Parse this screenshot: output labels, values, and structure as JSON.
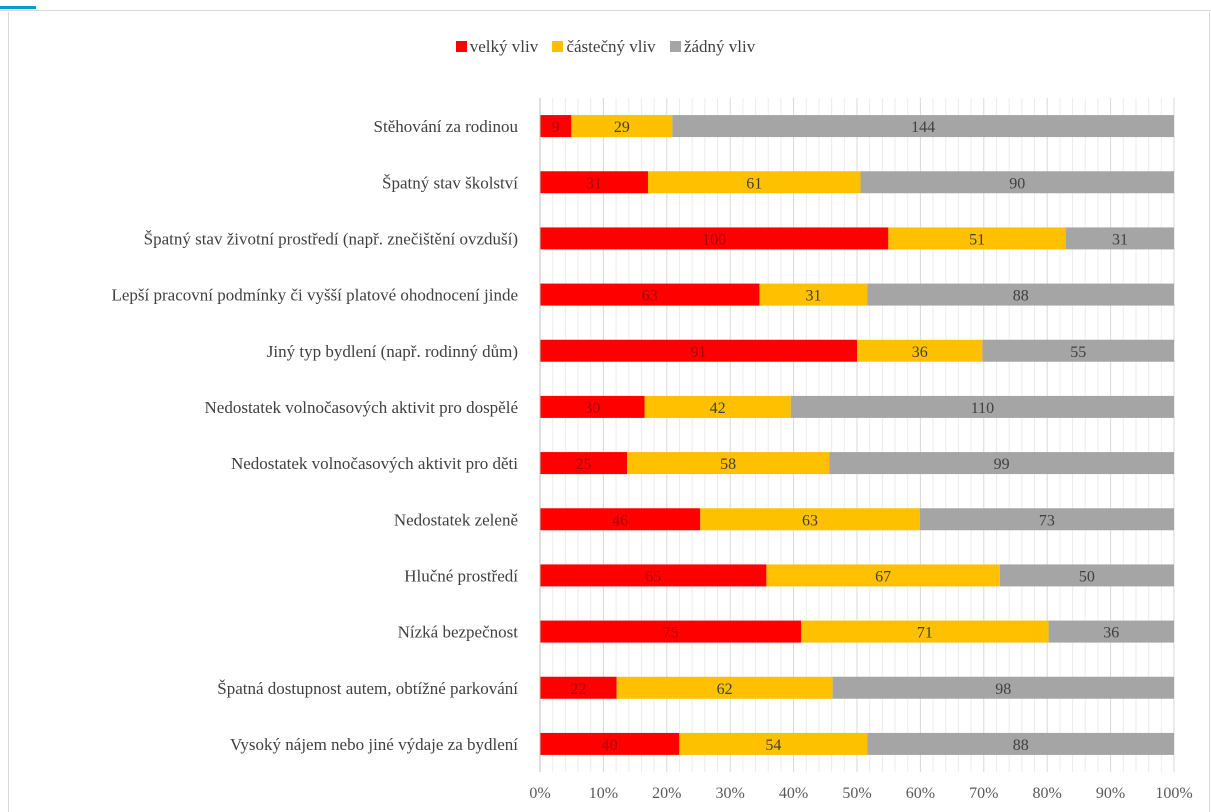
{
  "chart_data": {
    "type": "bar",
    "orientation": "horizontal",
    "stacked": "percent",
    "categories": [
      "Stěhování za rodinou",
      "Špatný stav školství",
      "Špatný stav životní prostředí (např. znečištění ovzduší)",
      "Lepší pracovní podmínky či vyšší platové ohodnocení jinde",
      "Jiný typ bydlení (např. rodinný dům)",
      "Nedostatek volnočasových aktivit pro dospělé",
      "Nedostatek volnočasových aktivit pro děti",
      "Nedostatek zeleně",
      "Hlučné prostředí",
      "Nízká bezpečnost",
      "Špatná dostupnost autem, obtížné parkování",
      "Vysoký nájem nebo jiné výdaje za bydlení"
    ],
    "series": [
      {
        "name": "velký vliv",
        "color": "#ff0000",
        "values": [
          9,
          31,
          100,
          63,
          91,
          30,
          25,
          46,
          65,
          75,
          22,
          40
        ]
      },
      {
        "name": "částečný vliv",
        "color": "#ffc000",
        "values": [
          29,
          61,
          51,
          31,
          36,
          42,
          58,
          63,
          67,
          71,
          62,
          54
        ]
      },
      {
        "name": "žádný vliv",
        "color": "#a5a5a5",
        "values": [
          144,
          90,
          31,
          88,
          55,
          110,
          99,
          73,
          50,
          36,
          98,
          88
        ]
      }
    ],
    "x_ticks": [
      "0%",
      "10%",
      "20%",
      "30%",
      "40%",
      "50%",
      "60%",
      "70%",
      "80%",
      "90%",
      "100%"
    ],
    "xlim": [
      0,
      100
    ],
    "grid": true,
    "legend": "top"
  }
}
